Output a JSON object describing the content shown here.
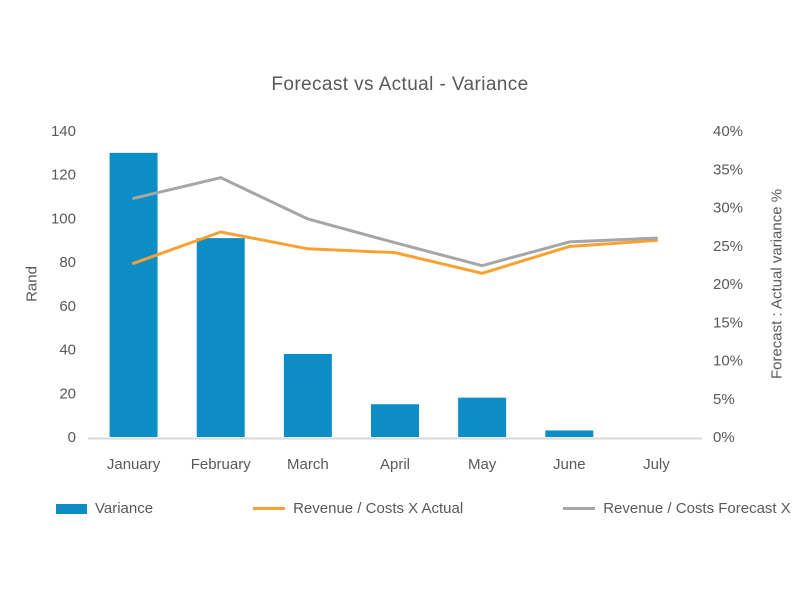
{
  "chart_data": {
    "type": "combo",
    "title": "Forecast vs Actual - Variance",
    "categories": [
      "January",
      "February",
      "March",
      "April",
      "May",
      "June",
      "July"
    ],
    "left_axis": {
      "label": "Rand",
      "min": 0,
      "max": 140,
      "step": 20
    },
    "right_axis": {
      "label": "Forecast : Actual variance %",
      "min": 0,
      "max": 40,
      "step": 5,
      "suffix": "%"
    },
    "series": [
      {
        "name": "Variance",
        "type": "bar",
        "axis": "left",
        "color": "#0D8DC6",
        "values": [
          130,
          91,
          38,
          15,
          18,
          3,
          0
        ]
      },
      {
        "name": "Revenue / Costs X Actual",
        "type": "line",
        "axis": "right",
        "color": "#FAA132",
        "values": [
          22.7,
          26.8,
          24.6,
          24.1,
          21.4,
          24.9,
          25.7
        ]
      },
      {
        "name": "Revenue / Costs Forecast X",
        "type": "line",
        "axis": "right",
        "color": "#A6A6A6",
        "values": [
          31.2,
          33.9,
          28.5,
          25.4,
          22.4,
          25.5,
          26
        ]
      }
    ],
    "legend_position": "bottom",
    "grid": "off",
    "text_color": "#595959",
    "axis_line_color": "#D9D9D9"
  }
}
